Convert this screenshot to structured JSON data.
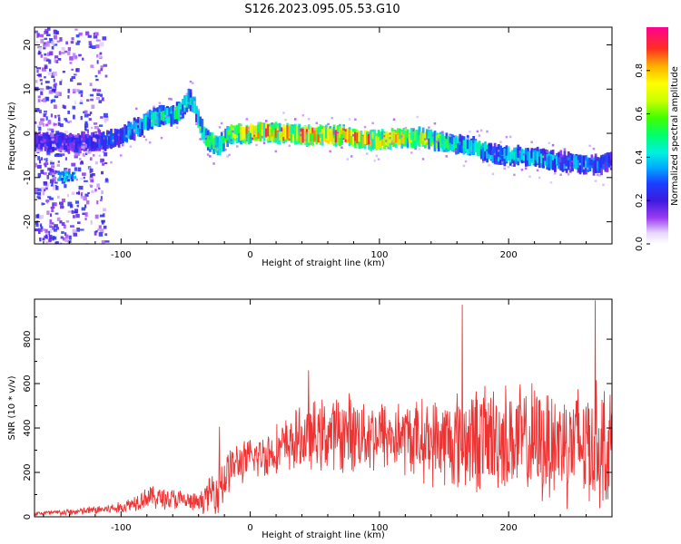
{
  "title": "S126.2023.095.05.53.G10",
  "chart_data": [
    {
      "type": "heatmap",
      "xlabel": "Height of straight line (km)",
      "ylabel": "Frequency (Hz)",
      "xlim": [
        -167,
        280
      ],
      "ylim": [
        -25,
        24
      ],
      "xticks": [
        -100,
        0,
        100,
        200
      ],
      "yticks": [
        -20,
        -10,
        0,
        10,
        20
      ],
      "ridge": {
        "x": [
          -125,
          -110,
          -100,
          -90,
          -80,
          -70,
          -62,
          -55,
          -48,
          -44,
          -40,
          -35,
          -30,
          -25,
          -20,
          -15,
          -10,
          -5,
          0,
          10,
          20,
          30,
          40,
          50,
          60,
          70,
          80,
          90,
          100,
          110,
          120,
          130,
          140,
          150,
          160,
          170,
          180,
          190,
          200,
          210,
          220,
          230,
          240,
          250,
          260,
          270,
          278
        ],
        "y": [
          -2,
          -1.5,
          -0.5,
          1,
          3,
          4,
          4,
          5,
          8,
          6,
          2,
          -1,
          -2,
          -3,
          -1,
          0,
          0,
          0,
          0,
          0.5,
          0,
          0,
          -0.5,
          -0.5,
          -0.5,
          -0.5,
          -1,
          -1.5,
          -1.5,
          -1,
          -1,
          -1,
          -1.5,
          -2,
          -2.5,
          -3,
          -4,
          -5,
          -5,
          -5,
          -5.5,
          -6,
          -6.5,
          -6.5,
          -7,
          -7,
          -6
        ],
        "amp": [
          0.25,
          0.3,
          0.35,
          0.4,
          0.45,
          0.5,
          0.5,
          0.5,
          0.45,
          0.45,
          0.55,
          0.6,
          0.6,
          0.55,
          0.6,
          0.7,
          0.75,
          0.8,
          0.9,
          0.9,
          0.85,
          0.85,
          0.85,
          0.9,
          0.85,
          0.9,
          0.85,
          0.9,
          0.8,
          0.8,
          0.75,
          0.7,
          0.65,
          0.55,
          0.5,
          0.45,
          0.45,
          0.4,
          0.45,
          0.4,
          0.4,
          0.4,
          0.35,
          0.35,
          0.35,
          0.3,
          0.3
        ]
      },
      "colorbar": {
        "label": "Normalized spectral amplitude",
        "range": [
          0,
          1
        ],
        "ticks": [
          0.0,
          0.2,
          0.4,
          0.6,
          0.8
        ]
      }
    },
    {
      "type": "line",
      "xlabel": "Height of straight line (km)",
      "ylabel": "SNR (10 * v/v)",
      "xlim": [
        -167,
        280
      ],
      "ylim": [
        0,
        980
      ],
      "xticks": [
        -100,
        0,
        100,
        200
      ],
      "yticks": [
        0,
        200,
        400,
        600,
        800
      ],
      "color": "#ee3333",
      "trend": {
        "x": [
          -167,
          -140,
          -100,
          -80,
          -60,
          -40,
          -30,
          -22,
          -15,
          0,
          20,
          40,
          60,
          80,
          100,
          120,
          140,
          160,
          180,
          200,
          220,
          240,
          260,
          280
        ],
        "mean": [
          15,
          20,
          40,
          90,
          80,
          60,
          110,
          150,
          230,
          260,
          300,
          350,
          370,
          380,
          370,
          360,
          340,
          340,
          360,
          350,
          330,
          340,
          330,
          320
        ],
        "spread": [
          10,
          15,
          25,
          50,
          50,
          40,
          80,
          140,
          90,
          90,
          110,
          140,
          160,
          170,
          160,
          160,
          180,
          220,
          230,
          240,
          250,
          260,
          280,
          250
        ]
      },
      "peaks": [
        {
          "x": -24,
          "y": 405
        },
        {
          "x": 45,
          "y": 660
        },
        {
          "x": 164,
          "y": 955
        },
        {
          "x": 267,
          "y": 975
        }
      ]
    }
  ]
}
